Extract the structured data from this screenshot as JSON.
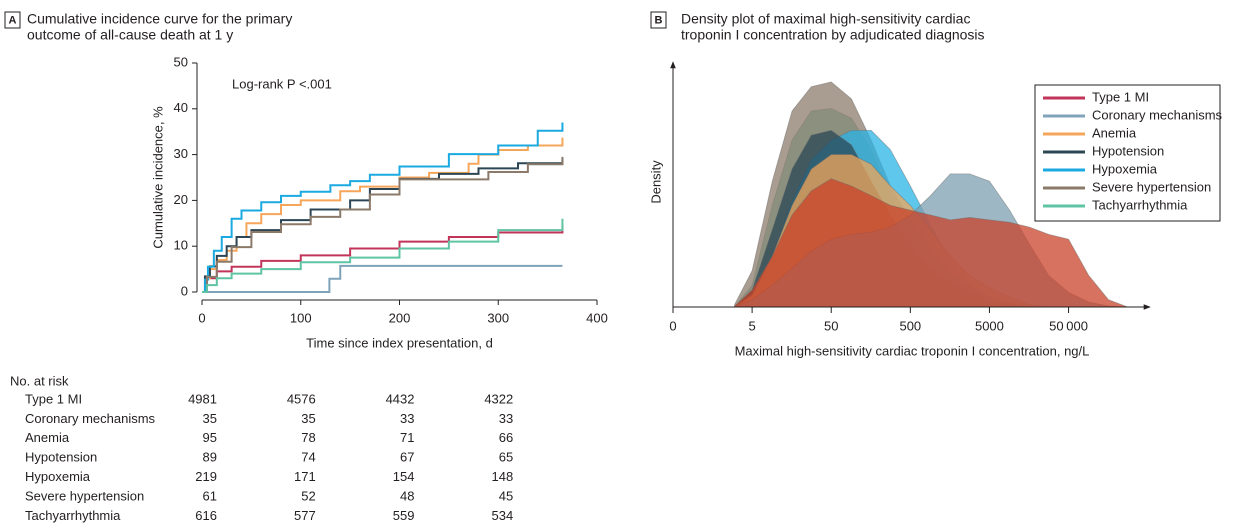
{
  "chart_data": [
    {
      "type": "line",
      "step": true,
      "panel": "A",
      "title": [
        "Cumulative incidence curve for the primary",
        "outcome of all-cause death at 1 y"
      ],
      "annotation": "Log-rank P <.001",
      "xlabel": "Time since index presentation, d",
      "ylabel": "Cumulative incidence, %",
      "xlim": [
        0,
        400
      ],
      "xticks": [
        0,
        100,
        200,
        300,
        400
      ],
      "ylim": [
        0,
        50
      ],
      "yticks": [
        0,
        10,
        20,
        30,
        40,
        50
      ],
      "risk_table_title": "No. at risk",
      "series": [
        {
          "name": "Type 1 MI",
          "color": "#c2355a",
          "x": [
            0,
            5,
            15,
            30,
            60,
            100,
            150,
            200,
            250,
            300,
            365
          ],
          "values": [
            0,
            3,
            4.5,
            5.5,
            6.8,
            8,
            9.5,
            11,
            12,
            13,
            14.5
          ],
          "at_risk": [
            4981,
            4576,
            4432,
            4322
          ]
        },
        {
          "name": "Coronary mechanisms",
          "color": "#7fa3b8",
          "x": [
            0,
            129,
            140,
            365
          ],
          "values": [
            0,
            2.9,
            5.7,
            5.7
          ],
          "at_risk": [
            35,
            35,
            33,
            33
          ]
        },
        {
          "name": "Anemia",
          "color": "#f5a65b",
          "x": [
            0,
            3,
            8,
            15,
            25,
            35,
            45,
            60,
            80,
            100,
            140,
            160,
            200,
            230,
            270,
            280,
            300,
            330,
            365
          ],
          "values": [
            0,
            3,
            5,
            7,
            9,
            12,
            15,
            17,
            19,
            20,
            22,
            23,
            25,
            26,
            28,
            30,
            31,
            32,
            33.7
          ],
          "at_risk": [
            95,
            78,
            71,
            66
          ]
        },
        {
          "name": "Hypotension",
          "color": "#2c4655",
          "x": [
            0,
            3,
            8,
            15,
            25,
            35,
            50,
            80,
            110,
            150,
            170,
            200,
            240,
            280,
            320,
            365
          ],
          "values": [
            0,
            3.4,
            5.6,
            7.9,
            10,
            12,
            13.5,
            15.7,
            18,
            20,
            22.5,
            24.7,
            25.8,
            27,
            28.1,
            29.2
          ],
          "at_risk": [
            89,
            74,
            67,
            65
          ]
        },
        {
          "name": "Hypoxemia",
          "color": "#1aa9e1",
          "x": [
            0,
            3,
            6,
            12,
            20,
            30,
            40,
            60,
            80,
            100,
            130,
            150,
            170,
            200,
            250,
            300,
            340,
            365
          ],
          "values": [
            0,
            2.7,
            5.5,
            9,
            12,
            16,
            17.8,
            19.6,
            21,
            21.9,
            23.3,
            24.2,
            25.6,
            27.4,
            30.1,
            32,
            35.2,
            37
          ],
          "at_risk": [
            219,
            171,
            154,
            148
          ]
        },
        {
          "name": "Severe hypertension",
          "color": "#8b7a6a",
          "x": [
            0,
            5,
            15,
            30,
            50,
            80,
            110,
            140,
            170,
            200,
            250,
            290,
            330,
            365
          ],
          "values": [
            0,
            3.3,
            6.6,
            9.8,
            13.1,
            14.8,
            16.4,
            18,
            21.3,
            24.6,
            24.6,
            26.2,
            27.9,
            29.5
          ],
          "at_risk": [
            61,
            52,
            48,
            45
          ]
        },
        {
          "name": "Tachyarrhythmia",
          "color": "#5fc4a4",
          "x": [
            0,
            5,
            15,
            30,
            60,
            100,
            150,
            200,
            250,
            300,
            365
          ],
          "values": [
            0,
            1.5,
            3,
            4,
            5,
            6.5,
            7.5,
            9.5,
            11,
            13.5,
            16
          ],
          "at_risk": [
            616,
            577,
            559,
            534
          ]
        }
      ]
    },
    {
      "type": "density",
      "panel": "B",
      "title": [
        "Density plot of maximal high-sensitivity cardiac",
        "troponin I concentration by adjudicated diagnosis"
      ],
      "xlabel": "Maximal high-sensitivity cardiac troponin I concentration, ng/L",
      "ylabel": "Density",
      "x_scale": "log",
      "xlim": [
        0.5,
        400000
      ],
      "xticks": [
        {
          "value": 0.5,
          "label": "0"
        },
        5,
        50,
        500,
        5000,
        {
          "value": 50000,
          "label": "50 000"
        }
      ],
      "ylim": [
        0,
        1
      ],
      "legend": "upper right",
      "x": [
        3,
        5,
        9,
        16,
        28,
        50,
        90,
        160,
        280,
        500,
        900,
        1600,
        2800,
        5000,
        9000,
        16000,
        28000,
        50000,
        90000,
        160000,
        280000
      ],
      "series": [
        {
          "name": "Type 1 MI",
          "color": "#c2355a",
          "fill": "#c8432a",
          "values": [
            0.004,
            0.07,
            0.21,
            0.38,
            0.48,
            0.53,
            0.5,
            0.46,
            0.42,
            0.4,
            0.38,
            0.36,
            0.37,
            0.36,
            0.35,
            0.33,
            0.3,
            0.28,
            0.13,
            0.03,
            0
          ]
        },
        {
          "name": "Coronary mechanisms",
          "color": "#7fa3b8",
          "fill": "#7e9fb2",
          "values": [
            0,
            0.03,
            0.09,
            0.16,
            0.23,
            0.28,
            0.3,
            0.31,
            0.33,
            0.38,
            0.46,
            0.55,
            0.55,
            0.52,
            0.4,
            0.26,
            0.13,
            0.06,
            0.02,
            0.004,
            0
          ]
        },
        {
          "name": "Anemia",
          "color": "#f5a65b",
          "fill": "#f2a65a",
          "values": [
            0,
            0.05,
            0.21,
            0.42,
            0.57,
            0.63,
            0.63,
            0.59,
            0.5,
            0.42,
            0.32,
            0.21,
            0.13,
            0.08,
            0.04,
            0.01,
            0,
            0,
            0,
            0,
            0
          ]
        },
        {
          "name": "Hypotension",
          "color": "#2c4655",
          "fill": "#2b4756",
          "values": [
            0,
            0.07,
            0.32,
            0.57,
            0.71,
            0.73,
            0.67,
            0.52,
            0.38,
            0.26,
            0.16,
            0.1,
            0.06,
            0.03,
            0.01,
            0,
            0,
            0,
            0,
            0,
            0
          ]
        },
        {
          "name": "Hypoxemia",
          "color": "#1aa9e1",
          "fill": "#29b3e6",
          "values": [
            0,
            0.05,
            0.21,
            0.44,
            0.61,
            0.69,
            0.73,
            0.73,
            0.65,
            0.5,
            0.34,
            0.19,
            0.09,
            0.04,
            0.01,
            0,
            0,
            0,
            0,
            0,
            0
          ]
        },
        {
          "name": "Severe hypertension",
          "color": "#8b7a6a",
          "fill": "#8c7b6b",
          "values": [
            0.01,
            0.15,
            0.52,
            0.81,
            0.91,
            0.93,
            0.86,
            0.69,
            0.5,
            0.36,
            0.24,
            0.14,
            0.08,
            0.04,
            0.02,
            0,
            0,
            0,
            0,
            0,
            0
          ]
        },
        {
          "name": "Tachyarrhythmia",
          "color": "#5fc4a4",
          "fill": "#63c6a6",
          "values": [
            0,
            0.09,
            0.42,
            0.69,
            0.81,
            0.82,
            0.78,
            0.65,
            0.46,
            0.3,
            0.17,
            0.09,
            0.04,
            0.02,
            0,
            0,
            0,
            0,
            0,
            0,
            0
          ]
        }
      ]
    }
  ]
}
